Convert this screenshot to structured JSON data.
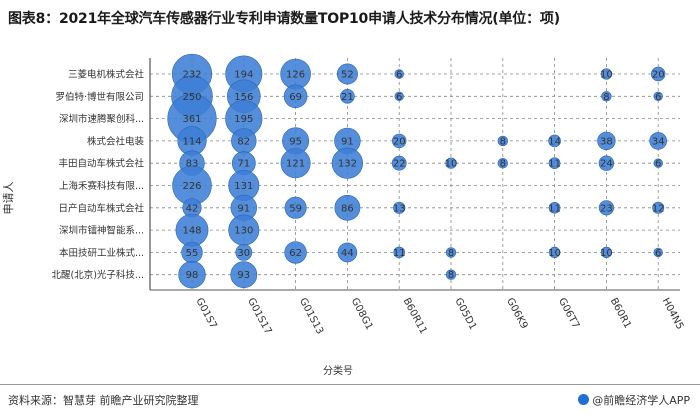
{
  "header": {
    "title": "图表8：2021年全球汽车传感器行业专利申请数量TOP10申请人技术分布情况(单位：项)"
  },
  "footer": {
    "source": "资料来源：智慧芽 前瞻产业研究院整理",
    "brand": "@前瞻经济学人APP"
  },
  "colors": {
    "bubble": "#3d7fd6",
    "bubble_stroke": "#2a66b8",
    "grid": "#888888",
    "axis": "#555555",
    "text": "#333333"
  },
  "chart_data": {
    "type": "scatter",
    "title": "图表8：2021年全球汽车传感器行业专利申请数量TOP10申请人技术分布情况(单位：项)",
    "xlabel": "分类号",
    "ylabel": "申请人",
    "grid": true,
    "categories_x": [
      "G01S7",
      "G01S17",
      "G01S13",
      "G08G1",
      "B60R11",
      "G05D1",
      "G06K9",
      "G06T7",
      "B60R1",
      "H04N5"
    ],
    "categories_y": [
      "三菱电机株式会社",
      "罗伯特·博世有限公司",
      "深圳市速腾聚创科...",
      "株式会社电装",
      "丰田自动车株式会社",
      "上海禾赛科技有限...",
      "日产自动车株式会社",
      "深圳市镭神智能系...",
      "本田技研工业株式...",
      "北醒(北京)光子科技..."
    ],
    "series": [
      {
        "values": [
          232,
          194,
          126,
          52,
          6,
          null,
          null,
          null,
          10,
          20
        ]
      },
      {
        "values": [
          250,
          156,
          69,
          21,
          6,
          null,
          null,
          null,
          8,
          6
        ]
      },
      {
        "values": [
          361,
          195,
          null,
          null,
          null,
          null,
          null,
          null,
          null,
          null
        ]
      },
      {
        "values": [
          114,
          82,
          95,
          91,
          20,
          null,
          8,
          14,
          38,
          34
        ]
      },
      {
        "values": [
          83,
          71,
          121,
          132,
          22,
          10,
          8,
          11,
          24,
          6
        ]
      },
      {
        "values": [
          226,
          131,
          null,
          null,
          null,
          null,
          null,
          null,
          null,
          null
        ]
      },
      {
        "values": [
          42,
          91,
          59,
          86,
          13,
          null,
          null,
          11,
          23,
          12
        ]
      },
      {
        "values": [
          148,
          130,
          null,
          null,
          null,
          null,
          null,
          null,
          null,
          null
        ]
      },
      {
        "values": [
          55,
          30,
          62,
          44,
          11,
          8,
          null,
          10,
          10,
          6
        ]
      },
      {
        "values": [
          98,
          93,
          null,
          null,
          null,
          8,
          null,
          null,
          null,
          null
        ]
      }
    ]
  }
}
